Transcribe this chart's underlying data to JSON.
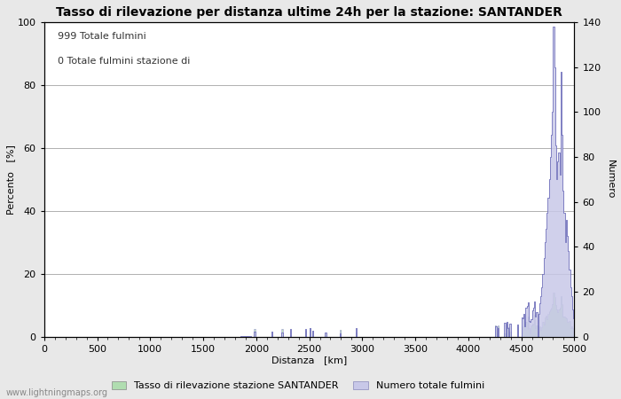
{
  "title": "Tasso di rilevazione per distanza ultime 24h per la stazione: SANTANDER",
  "xlabel": "Distanza   [km]",
  "ylabel_left": "Percento   [%]",
  "ylabel_right": "Numero",
  "annotation_line1": "999 Totale fulmini",
  "annotation_line2": "0 Totale fulmini stazione di",
  "watermark": "www.lightningmaps.org",
  "xlim": [
    0,
    5000
  ],
  "ylim_left": [
    0,
    100
  ],
  "ylim_right": [
    0,
    140
  ],
  "xticks": [
    0,
    500,
    1000,
    1500,
    2000,
    2500,
    3000,
    3500,
    4000,
    4500,
    5000
  ],
  "yticks_left": [
    0,
    20,
    40,
    60,
    80,
    100
  ],
  "yticks_right": [
    0,
    20,
    40,
    60,
    80,
    100,
    120,
    140
  ],
  "bg_color": "#e8e8e8",
  "plot_bg_color": "#ffffff",
  "grid_color": "#b0b0b0",
  "line_color": "#7070bb",
  "fill_color_blue": "#c8c8e8",
  "fill_color_green": "#b0ddb0",
  "title_fontsize": 10,
  "label_fontsize": 8,
  "tick_fontsize": 8,
  "annotation_fontsize": 8,
  "watermark_fontsize": 7
}
